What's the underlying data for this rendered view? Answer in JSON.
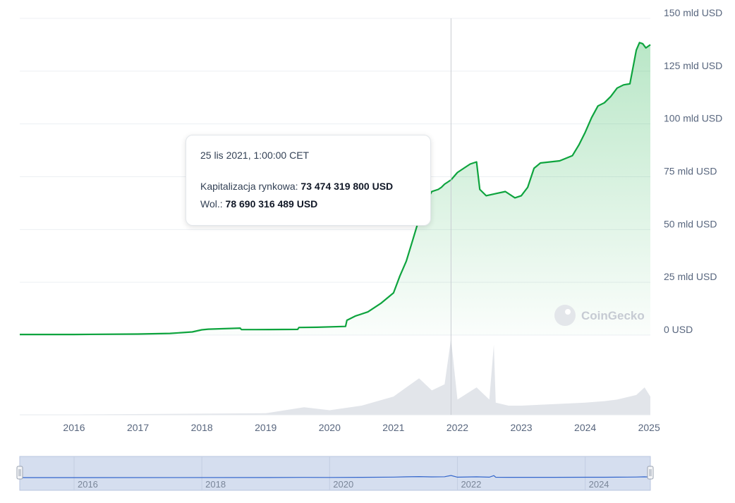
{
  "watermark": "CoinGecko",
  "tooltip": {
    "date": "25 lis 2021, 1:00:00 CET",
    "market_cap_label": "Kapitalizacja rynkowa:",
    "market_cap_value": "73 474 319 800 USD",
    "volume_label": "Wol.:",
    "volume_value": "78 690 316 489 USD"
  },
  "colors": {
    "line": "#0ea43e",
    "area": "#25b350",
    "volume": "#e2e5ea",
    "navigator_fill": "#d5deef",
    "navigator_line": "#3366cc"
  },
  "chart_data": {
    "type": "area",
    "title": "",
    "xlabel": "",
    "ylabel": "",
    "ylim": [
      0,
      150
    ],
    "y_unit": "mld USD",
    "xlim": [
      2015.15,
      2025.02
    ],
    "grid": true,
    "y_tick_values": [
      0,
      25,
      50,
      75,
      100,
      125,
      150
    ],
    "y_ticks": [
      "0 USD",
      "25 mld USD",
      "50 mld USD",
      "75 mld USD",
      "100 mld USD",
      "125 mld USD",
      "150 mld USD"
    ],
    "x_ticks": [
      "2016",
      "2017",
      "2018",
      "2019",
      "2020",
      "2021",
      "2022",
      "2023",
      "2024",
      "2025"
    ],
    "crosshair_x": 2021.9,
    "series": [
      {
        "x": [
          2015.15,
          2016.0,
          2017.0,
          2017.5,
          2017.85,
          2018.0,
          2018.1,
          2018.6,
          2018.62,
          2018.85,
          2019.5,
          2019.52,
          2019.8,
          2020.25,
          2020.27,
          2020.4,
          2020.6,
          2020.8,
          2021.0,
          2021.1,
          2021.2,
          2021.3,
          2021.45,
          2021.6,
          2021.7,
          2021.75,
          2021.8,
          2021.85,
          2021.9,
          2022.0,
          2022.1,
          2022.2,
          2022.3,
          2022.35,
          2022.45,
          2022.6,
          2022.75,
          2022.9,
          2023.0,
          2023.1,
          2023.2,
          2023.3,
          2023.45,
          2023.6,
          2023.8,
          2023.9,
          2024.0,
          2024.1,
          2024.2,
          2024.3,
          2024.4,
          2024.5,
          2024.6,
          2024.7,
          2024.8,
          2024.85,
          2024.9,
          2024.95,
          2025.02
        ],
        "y": [
          0.3,
          0.3,
          0.5,
          0.8,
          1.5,
          2.5,
          2.8,
          3.3,
          2.6,
          2.6,
          2.7,
          3.6,
          3.7,
          4.1,
          7.0,
          9.0,
          11.0,
          15.0,
          20.0,
          28.0,
          35.0,
          45.0,
          60.0,
          68.0,
          69.0,
          70.0,
          71.5,
          72.5,
          73.5,
          77.0,
          79.0,
          81.0,
          82.0,
          69.0,
          66.0,
          67.0,
          68.0,
          65.0,
          66.0,
          70.0,
          79.0,
          81.5,
          82.0,
          82.5,
          85.0,
          90.0,
          96.0,
          103.0,
          108.5,
          110.0,
          113.0,
          117.0,
          118.5,
          119.0,
          135.0,
          138.5,
          138.0,
          136.0,
          137.5
        ]
      }
    ],
    "volume_series": {
      "x": [
        2015.15,
        2019.0,
        2019.6,
        2020.0,
        2020.5,
        2021.0,
        2021.2,
        2021.4,
        2021.6,
        2021.8,
        2021.9,
        2022.0,
        2022.3,
        2022.5,
        2022.57,
        2022.6,
        2022.8,
        2023.0,
        2023.5,
        2024.0,
        2024.3,
        2024.5,
        2024.8,
        2024.93,
        2025.02
      ],
      "y": [
        0.0,
        0.5,
        2.5,
        1.5,
        3.0,
        6.0,
        9.0,
        12.0,
        8.0,
        10.0,
        25.0,
        5.0,
        9.0,
        5.0,
        23.0,
        4.0,
        3.0,
        3.0,
        3.5,
        4.0,
        4.5,
        5.0,
        6.5,
        9.0,
        6.0
      ]
    },
    "navigator": {
      "x_ticks": [
        "2016",
        "2018",
        "2020",
        "2022",
        "2024"
      ]
    }
  }
}
